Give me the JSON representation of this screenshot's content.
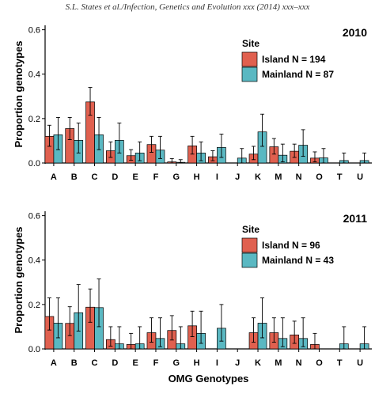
{
  "header": {
    "running_head": "S.L. States et al./Infection, Genetics and Evolution xxx (2014) xxx–xxx"
  },
  "colors": {
    "island": "#e0604f",
    "mainland": "#5ab8c2",
    "axis": "#000000"
  },
  "chart_data": [
    {
      "type": "bar",
      "title": "2010",
      "xlabel": "",
      "ylabel": "Proportion genotypes",
      "ylim": [
        0,
        0.62
      ],
      "yticks": [
        "0.0",
        "0.2",
        "0.4",
        "0.6"
      ],
      "legend_title": "Site",
      "legend_position": "top-right",
      "categories": [
        "A",
        "B",
        "C",
        "D",
        "E",
        "F",
        "G",
        "H",
        "I",
        "J",
        "K",
        "M",
        "N",
        "O",
        "T",
        "U"
      ],
      "series": [
        {
          "name": "Island N = 194",
          "values": [
            0.12,
            0.155,
            0.275,
            0.055,
            0.033,
            0.083,
            0.005,
            0.077,
            0.028,
            0.0,
            0.04,
            0.073,
            0.053,
            0.022,
            0.0,
            0.0
          ],
          "err_low": [
            0.075,
            0.105,
            0.215,
            0.025,
            0.012,
            0.048,
            0.0,
            0.04,
            0.01,
            0.0,
            0.015,
            0.04,
            0.025,
            0.005,
            0.0,
            0.0
          ],
          "err_high": [
            0.17,
            0.205,
            0.34,
            0.095,
            0.06,
            0.12,
            0.02,
            0.12,
            0.055,
            0.0,
            0.075,
            0.11,
            0.085,
            0.05,
            0.0,
            0.0
          ]
        },
        {
          "name": "Mainland N = 87",
          "values": [
            0.127,
            0.102,
            0.127,
            0.102,
            0.045,
            0.058,
            0.003,
            0.045,
            0.07,
            0.022,
            0.14,
            0.035,
            0.08,
            0.023,
            0.011,
            0.011
          ],
          "err_low": [
            0.06,
            0.045,
            0.06,
            0.045,
            0.01,
            0.02,
            0.0,
            0.01,
            0.025,
            0.0,
            0.075,
            0.005,
            0.03,
            0.0,
            0.0,
            0.0
          ],
          "err_high": [
            0.205,
            0.18,
            0.205,
            0.18,
            0.095,
            0.12,
            0.015,
            0.095,
            0.13,
            0.065,
            0.22,
            0.085,
            0.15,
            0.065,
            0.045,
            0.045
          ]
        }
      ]
    },
    {
      "type": "bar",
      "title": "2011",
      "xlabel": "OMG Genotypes",
      "ylabel": "Proportion genotypes",
      "ylim": [
        0,
        0.62
      ],
      "yticks": [
        "0.0",
        "0.2",
        "0.4",
        "0.6"
      ],
      "legend_title": "Site",
      "legend_position": "top-right",
      "categories": [
        "A",
        "B",
        "C",
        "D",
        "E",
        "F",
        "G",
        "H",
        "I",
        "J",
        "K",
        "M",
        "N",
        "O",
        "T",
        "U"
      ],
      "series": [
        {
          "name": "Island N = 96",
          "values": [
            0.146,
            0.115,
            0.188,
            0.042,
            0.02,
            0.073,
            0.083,
            0.104,
            0.0,
            0.0,
            0.073,
            0.073,
            0.063,
            0.02,
            0.0,
            0.0
          ],
          "err_low": [
            0.085,
            0.06,
            0.12,
            0.012,
            0.0,
            0.03,
            0.04,
            0.055,
            0.0,
            0.0,
            0.03,
            0.03,
            0.025,
            0.0,
            0.0,
            0.0
          ],
          "err_high": [
            0.23,
            0.19,
            0.27,
            0.1,
            0.07,
            0.14,
            0.15,
            0.17,
            0.0,
            0.0,
            0.14,
            0.14,
            0.125,
            0.07,
            0.0,
            0.0
          ]
        },
        {
          "name": "Mainland N = 43",
          "values": [
            0.116,
            0.163,
            0.186,
            0.023,
            0.023,
            0.047,
            0.023,
            0.07,
            0.093,
            0.0,
            0.116,
            0.047,
            0.047,
            0.0,
            0.023,
            0.023
          ],
          "err_low": [
            0.05,
            0.08,
            0.1,
            0.0,
            0.0,
            0.01,
            0.0,
            0.025,
            0.035,
            0.0,
            0.05,
            0.01,
            0.01,
            0.0,
            0.0,
            0.0
          ],
          "err_high": [
            0.23,
            0.29,
            0.315,
            0.1,
            0.1,
            0.14,
            0.1,
            0.17,
            0.2,
            0.0,
            0.23,
            0.14,
            0.14,
            0.0,
            0.1,
            0.1
          ]
        }
      ]
    }
  ]
}
